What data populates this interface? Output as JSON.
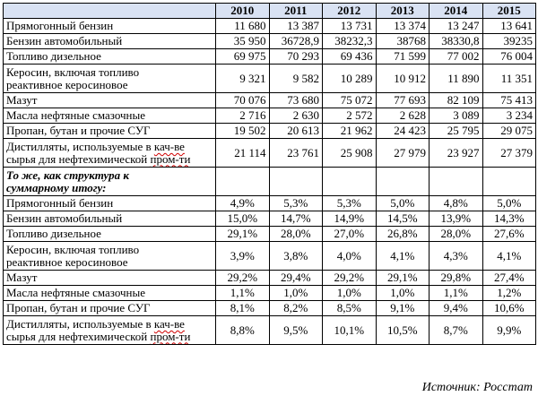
{
  "table": {
    "years": [
      "2010",
      "2011",
      "2012",
      "2013",
      "2014",
      "2015"
    ],
    "rows": [
      {
        "label": [
          "Прямогонный бензин"
        ],
        "values": [
          "11 680",
          "13 387",
          "13 731",
          "13 374",
          "13 247",
          "13 641"
        ]
      },
      {
        "label": [
          "Бензин автомобильный"
        ],
        "values": [
          "35 950",
          "36728,9",
          "38232,3",
          "38768",
          "38330,8",
          "39235"
        ]
      },
      {
        "label": [
          "Топливо дизельное"
        ],
        "values": [
          "69 975",
          "70 293",
          "69 436",
          "71 599",
          "77 002",
          "76 004"
        ]
      },
      {
        "label": [
          "Керосин, включая топливо",
          "реактивное керосиновое"
        ],
        "values": [
          "9 321",
          "9 582",
          "10 289",
          "10 912",
          "11 890",
          "11 351"
        ]
      },
      {
        "label": [
          "Мазут"
        ],
        "values": [
          "70 076",
          "73 680",
          "75 072",
          "77 693",
          "82 109",
          "75 413"
        ]
      },
      {
        "label": [
          "Масла нефтяные смазочные"
        ],
        "values": [
          "2 716",
          "2 630",
          "2 572",
          "2 628",
          "3 089",
          "3 234"
        ]
      },
      {
        "label": [
          "Пропан, бутан и прочие СУГ"
        ],
        "values": [
          "19 502",
          "20 613",
          "21 962",
          "24 423",
          "25 795",
          "29 075"
        ]
      },
      {
        "label": [
          "Дистилляты, используемые в ",
          "кач-ве",
          "сырья для нефтехимической ",
          "пром-ти"
        ],
        "values": [
          "21 114",
          "23 761",
          "25 908",
          "27 979",
          "23 927",
          "27 379"
        ]
      }
    ],
    "section_heading": [
      "То же, как структура к",
      "суммарному итогу:"
    ],
    "share_rows": [
      {
        "label": [
          "Прямогонный бензин"
        ],
        "values": [
          "4,9%",
          "5,3%",
          "5,3%",
          "5,0%",
          "4,8%",
          "5,0%"
        ]
      },
      {
        "label": [
          "Бензин автомобильный"
        ],
        "values": [
          "15,0%",
          "14,7%",
          "14,9%",
          "14,5%",
          "13,9%",
          "14,3%"
        ]
      },
      {
        "label": [
          "Топливо дизельное"
        ],
        "values": [
          "29,1%",
          "28,0%",
          "27,0%",
          "26,8%",
          "28,0%",
          "27,6%"
        ]
      },
      {
        "label": [
          "Керосин, включая топливо",
          "реактивное керосиновое"
        ],
        "values": [
          "3,9%",
          "3,8%",
          "4,0%",
          "4,1%",
          "4,3%",
          "4,1%"
        ]
      },
      {
        "label": [
          "Мазут"
        ],
        "values": [
          "29,2%",
          "29,4%",
          "29,2%",
          "29,1%",
          "29,8%",
          "27,4%"
        ]
      },
      {
        "label": [
          "Масла нефтяные смазочные"
        ],
        "values": [
          "1,1%",
          "1,0%",
          "1,0%",
          "1,0%",
          "1,1%",
          "1,2%"
        ]
      },
      {
        "label": [
          "Пропан, бутан и прочие СУГ"
        ],
        "values": [
          "8,1%",
          "8,2%",
          "8,5%",
          "9,1%",
          "9,4%",
          "10,6%"
        ]
      },
      {
        "label": [
          "Дистилляты, используемые в ",
          "кач-ве",
          "сырья для нефтехимической ",
          "пром-ти"
        ],
        "values": [
          "8,8%",
          "9,5%",
          "10,1%",
          "10,5%",
          "8,7%",
          "9,9%"
        ]
      }
    ]
  },
  "source": "Источник: Росстат"
}
